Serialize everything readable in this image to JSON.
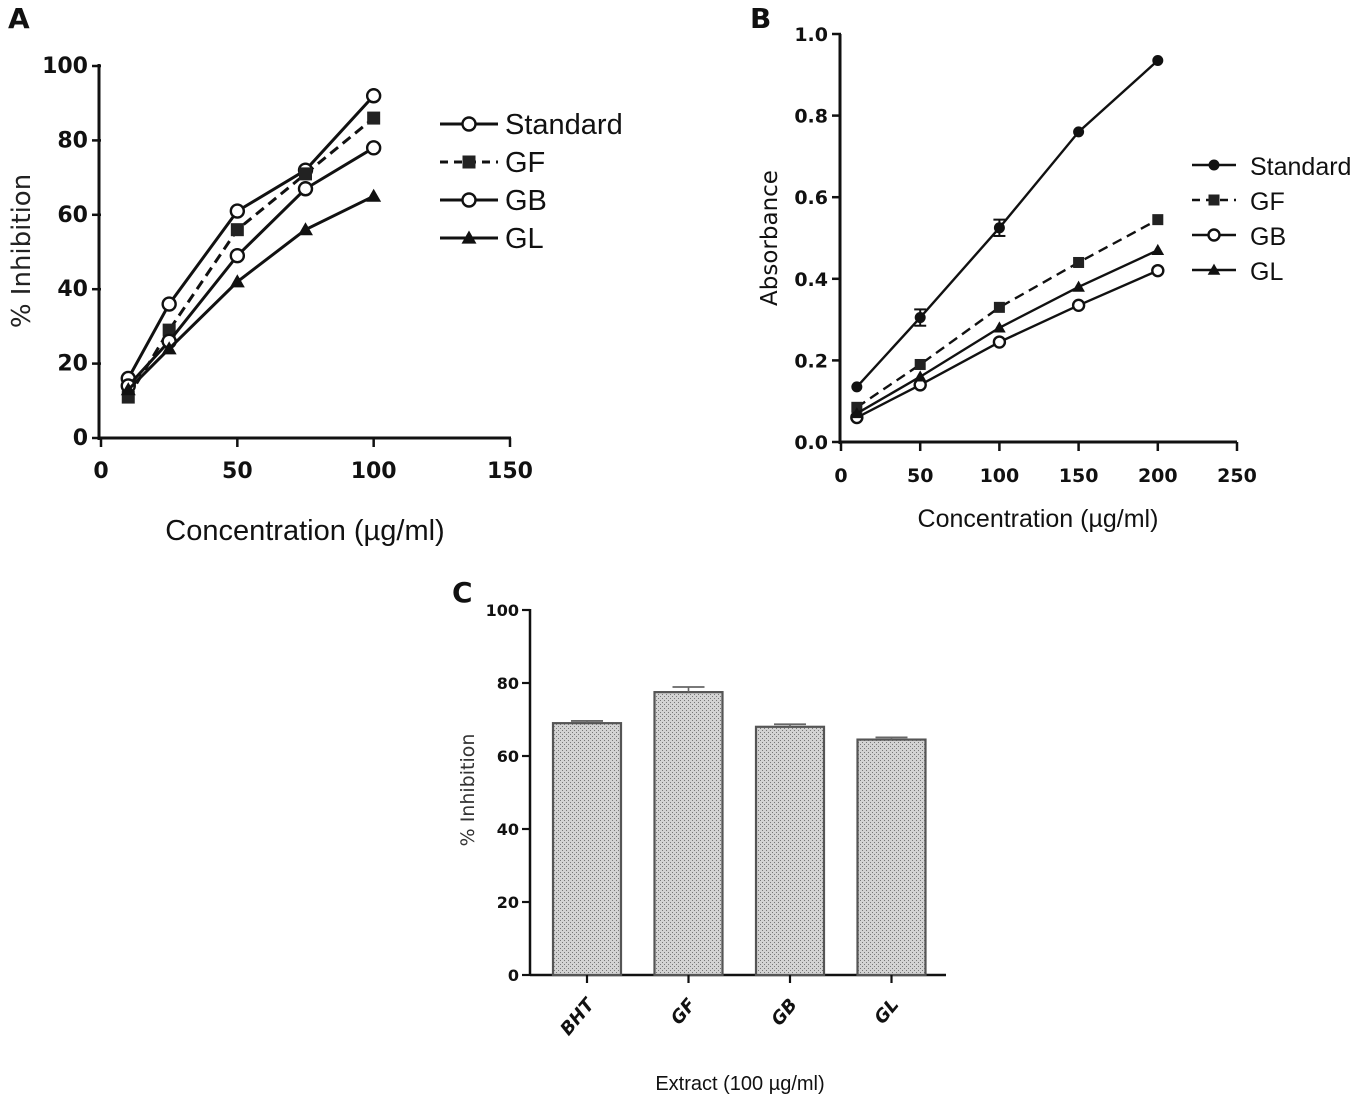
{
  "panels": {
    "a": "A",
    "b": "B",
    "c": "C"
  },
  "chart_data": [
    {
      "id": "a",
      "panel": "A",
      "type": "line",
      "title": "",
      "xlabel": "Concentration (µg/ml)",
      "ylabel": "% Inhibition",
      "xlim": [
        0,
        150
      ],
      "ylim": [
        0,
        100
      ],
      "xticks": [
        "0",
        "50",
        "100",
        "150"
      ],
      "yticks": [
        "0",
        "20",
        "40",
        "60",
        "80",
        "100"
      ],
      "legend_position": "right",
      "x": [
        10,
        25,
        50,
        75,
        100
      ],
      "series": [
        {
          "name": "Standard",
          "values": [
            16,
            36,
            61,
            72,
            92
          ],
          "marker": "open-circle",
          "dash": "solid"
        },
        {
          "name": "GF",
          "values": [
            11,
            29,
            56,
            71,
            86
          ],
          "marker": "square",
          "dash": "dashed"
        },
        {
          "name": "GB",
          "values": [
            14,
            26,
            49,
            67,
            78
          ],
          "marker": "open-circle",
          "dash": "solid"
        },
        {
          "name": "GL",
          "values": [
            13,
            24,
            42,
            56,
            65
          ],
          "marker": "triangle",
          "dash": "solid"
        }
      ]
    },
    {
      "id": "b",
      "panel": "B",
      "type": "line",
      "title": "",
      "xlabel": "Concentration (µg/ml)",
      "ylabel": "Absorbance",
      "xlim": [
        0,
        250
      ],
      "ylim": [
        0,
        1.0
      ],
      "xticks": [
        "0",
        "50",
        "100",
        "150",
        "200",
        "250"
      ],
      "yticks": [
        "0.0",
        "0.2",
        "0.4",
        "0.6",
        "0.8",
        "1.0"
      ],
      "legend_position": "right",
      "x": [
        10,
        50,
        100,
        150,
        200
      ],
      "series": [
        {
          "name": "Standard",
          "values": [
            0.135,
            0.305,
            0.525,
            0.76,
            0.935
          ],
          "errors": [
            0,
            0.02,
            0.02,
            0,
            0
          ],
          "marker": "filled-circle",
          "dash": "solid"
        },
        {
          "name": "GF",
          "values": [
            0.085,
            0.19,
            0.33,
            0.44,
            0.545
          ],
          "errors": [
            0,
            0,
            0,
            0,
            0
          ],
          "marker": "square",
          "dash": "dashed"
        },
        {
          "name": "GB",
          "values": [
            0.06,
            0.14,
            0.245,
            0.335,
            0.42
          ],
          "errors": [
            0,
            0,
            0,
            0,
            0
          ],
          "marker": "open-circle",
          "dash": "solid"
        },
        {
          "name": "GL",
          "values": [
            0.07,
            0.16,
            0.28,
            0.38,
            0.47
          ],
          "errors": [
            0,
            0,
            0,
            0,
            0
          ],
          "marker": "triangle",
          "dash": "solid"
        }
      ]
    },
    {
      "id": "c",
      "panel": "C",
      "type": "bar",
      "title": "",
      "xlabel": "Extract (100 µg/ml)",
      "ylabel": "% Inhibition",
      "ylim": [
        0,
        100
      ],
      "yticks": [
        "0",
        "20",
        "40",
        "60",
        "80",
        "100"
      ],
      "categories": [
        "BHT",
        "GF",
        "GB",
        "GL"
      ],
      "values": [
        69,
        77.5,
        68,
        64.5
      ],
      "errors": [
        0.6,
        1.4,
        0.7,
        0.6
      ]
    }
  ]
}
